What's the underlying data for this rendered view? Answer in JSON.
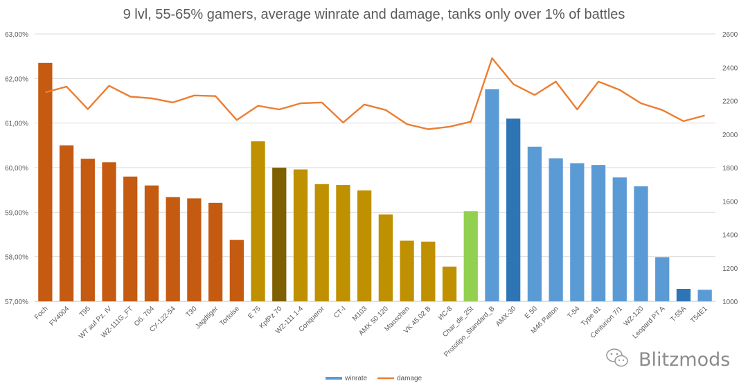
{
  "chart_data": {
    "type": "bar",
    "title": "9 lvl, 55-65% gamers, average winrate and damage, tanks only over 1% of battles",
    "categories": [
      "Foch",
      "FV4004",
      "T95",
      "WT auf Pz. IV",
      "WZ-111G_FT",
      "Об. 704",
      "СУ-122-54",
      "T30",
      "Jagdtiger",
      "Tortoise",
      "E 75",
      "KpfPz 70",
      "WZ-111 1-4",
      "Conqueror",
      "СТ-I",
      "M103",
      "AMX 50 120",
      "Mauschen",
      "VK 45.02 B",
      "ИС-8",
      "Char_de_25t",
      "Prototipo_Standard_B",
      "AMX-30",
      "E 50",
      "M46 Patton",
      "T-54",
      "Type 61",
      "Centurion 7/1",
      "WZ-120",
      "Leopard PT A",
      "T-55A",
      "T54E1"
    ],
    "series": [
      {
        "name": "winrate",
        "axis": "left",
        "kind": "bar",
        "values": [
          62.35,
          60.5,
          60.2,
          60.12,
          59.8,
          59.6,
          59.34,
          59.31,
          59.21,
          58.38,
          60.59,
          60.0,
          59.96,
          59.63,
          59.61,
          59.49,
          58.95,
          58.36,
          58.34,
          57.78,
          59.02,
          61.76,
          61.1,
          60.47,
          60.21,
          60.1,
          60.06,
          59.78,
          59.58,
          57.99,
          57.28,
          57.26
        ],
        "colors": [
          "#c55a11",
          "#c55a11",
          "#c55a11",
          "#c55a11",
          "#c55a11",
          "#c55a11",
          "#c55a11",
          "#c55a11",
          "#c55a11",
          "#c55a11",
          "#bf9000",
          "#7f6000",
          "#bf9000",
          "#bf9000",
          "#bf9000",
          "#bf9000",
          "#bf9000",
          "#bf9000",
          "#bf9000",
          "#bf9000",
          "#92d050",
          "#5b9bd5",
          "#2e75b6",
          "#5b9bd5",
          "#5b9bd5",
          "#5b9bd5",
          "#5b9bd5",
          "#5b9bd5",
          "#5b9bd5",
          "#5b9bd5",
          "#2e75b6",
          "#5b9bd5"
        ]
      },
      {
        "name": "damage",
        "axis": "right",
        "kind": "line",
        "color": "#ed7d31",
        "values": [
          2250,
          2285,
          2150,
          2290,
          2225,
          2215,
          2190,
          2232,
          2228,
          2085,
          2170,
          2148,
          2185,
          2190,
          2070,
          2178,
          2145,
          2060,
          2030,
          2045,
          2075,
          2455,
          2300,
          2235,
          2315,
          2148,
          2315,
          2265,
          2185,
          2145,
          2078,
          2112
        ]
      }
    ],
    "y_left": {
      "min": 57,
      "max": 63,
      "step": 1,
      "ticks": [
        "57,00%",
        "58,00%",
        "59,00%",
        "60,00%",
        "61,00%",
        "62,00%",
        "63,00%"
      ]
    },
    "y_right": {
      "min": 1000,
      "max": 2600,
      "step": 200,
      "ticks": [
        "1000",
        "1200",
        "1400",
        "1600",
        "1800",
        "2000",
        "2200",
        "2400",
        "2600"
      ]
    },
    "legend": [
      "winrate",
      "damage"
    ],
    "legend_position": "bottom",
    "legend_colors": {
      "winrate": "#5b9bd5",
      "damage": "#ed7d31"
    },
    "grid": true
  },
  "watermark": {
    "text": "Blitzmods",
    "icon": "wechat-icon"
  }
}
